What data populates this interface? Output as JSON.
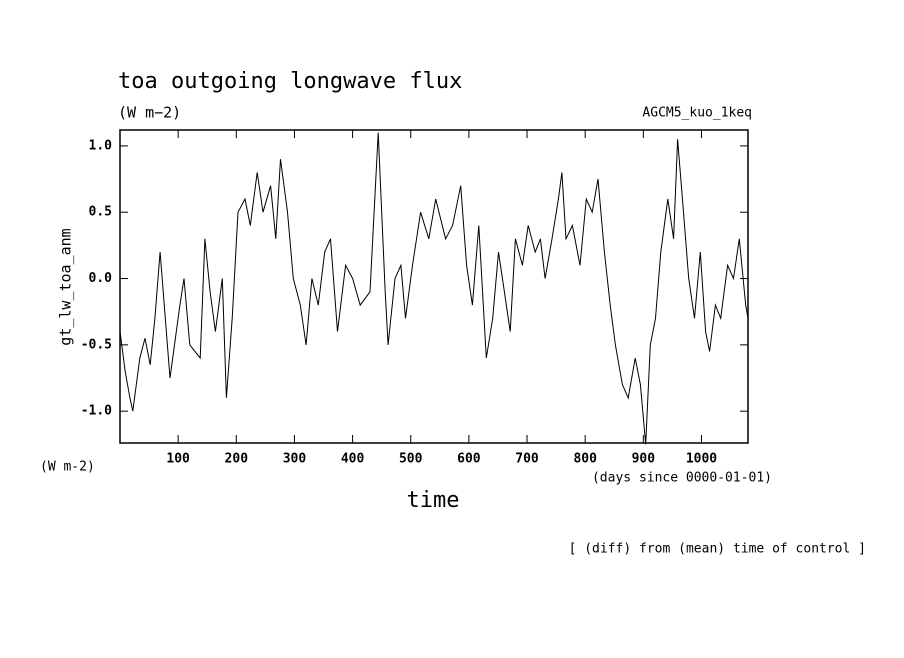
{
  "chart_data": {
    "type": "line",
    "title": "toa outgoing longwave flux",
    "subtitle": "(W m−2)",
    "annotation_right": "AGCM5_kuo_1keq",
    "y_label": "gt_lw_toa_anm",
    "y_units": "(W m-2)",
    "x_units": "(days since 0000-01-01)",
    "x_label": "time",
    "footnote": "[ (diff) from (mean) time of control ]",
    "xlim": [
      0,
      1080
    ],
    "ylim": [
      -1.24,
      1.12
    ],
    "xticks": [
      100,
      200,
      300,
      400,
      500,
      600,
      700,
      800,
      900,
      1000
    ],
    "yticks": [
      {
        "value": -1,
        "label": "-1.0"
      },
      -0.5,
      {
        "value": 0,
        "label": "0.0"
      },
      0.5,
      {
        "value": 1,
        "label": "1.0"
      }
    ],
    "grid": false,
    "series": [
      {
        "name": "gt_lw_toa_anm",
        "color": "#000000",
        "x": [
          0,
          9,
          17,
          22,
          34,
          43,
          52,
          60,
          69,
          86,
          103,
          110,
          120,
          138,
          146,
          155,
          164,
          176,
          183,
          193,
          203,
          215,
          224,
          236,
          246,
          259,
          268,
          276,
          288,
          298,
          310,
          320,
          330,
          341,
          352,
          362,
          374,
          388,
          400,
          413,
          430,
          444,
          456,
          461,
          473,
          483,
          491,
          503,
          517,
          531,
          543,
          560,
          572,
          586,
          596,
          606,
          617,
          630,
          641,
          651,
          661,
          671,
          680,
          692,
          702,
          714,
          723,
          731,
          743,
          754,
          760,
          767,
          778,
          791,
          802,
          812,
          822,
          833,
          843,
          852,
          864,
          874,
          886,
          895,
          904,
          912,
          921,
          930,
          942,
          952,
          959,
          969,
          978,
          988,
          998,
          1007,
          1014,
          1024,
          1033,
          1045,
          1055,
          1065,
          1076,
          1080
        ],
        "values": [
          -0.4,
          -0.7,
          -0.9,
          -1.0,
          -0.6,
          -0.45,
          -0.65,
          -0.3,
          0.2,
          -0.75,
          -0.2,
          0.0,
          -0.5,
          -0.6,
          0.3,
          -0.1,
          -0.4,
          0.0,
          -0.9,
          -0.3,
          0.5,
          0.6,
          0.4,
          0.8,
          0.5,
          0.7,
          0.3,
          0.9,
          0.5,
          0.0,
          -0.2,
          -0.5,
          0.0,
          -0.2,
          0.2,
          0.3,
          -0.4,
          0.1,
          0.0,
          -0.2,
          -0.1,
          1.1,
          -0.1,
          -0.5,
          0.0,
          0.1,
          -0.3,
          0.1,
          0.5,
          0.3,
          0.6,
          0.3,
          0.4,
          0.7,
          0.1,
          -0.2,
          0.4,
          -0.6,
          -0.3,
          0.2,
          -0.1,
          -0.4,
          0.3,
          0.1,
          0.4,
          0.2,
          0.3,
          0.0,
          0.3,
          0.6,
          0.8,
          0.3,
          0.4,
          0.1,
          0.6,
          0.5,
          0.75,
          0.2,
          -0.2,
          -0.5,
          -0.8,
          -0.9,
          -0.6,
          -0.8,
          -1.25,
          -0.5,
          -0.3,
          0.2,
          0.6,
          0.3,
          1.05,
          0.5,
          0.0,
          -0.3,
          0.2,
          -0.4,
          -0.55,
          -0.2,
          -0.3,
          0.1,
          0.0,
          0.3,
          -0.2,
          -0.3
        ]
      }
    ]
  }
}
